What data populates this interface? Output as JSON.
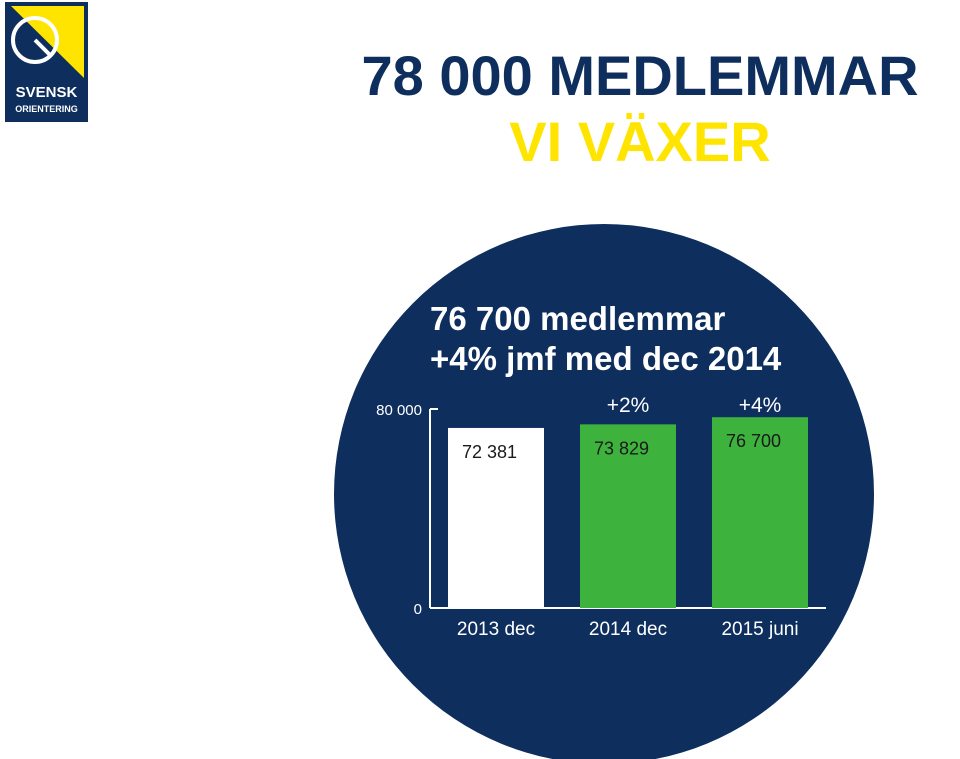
{
  "logo": {
    "line1": "SVENSK",
    "line2": "ORIENTERING",
    "colors": {
      "blue": "#0e2f5e",
      "yellow": "#ffe400"
    }
  },
  "headline": {
    "line1": "78 000 MEDLEMMAR",
    "line2": "VI VÄXER"
  },
  "colors": {
    "navy": "#0e2f5e",
    "yellow": "#ffe400",
    "green": "#3db33d",
    "white": "#ffffff",
    "label_dark": "#1a1a1a"
  },
  "chart_data": {
    "type": "bar",
    "title": "76 700 medlemmar",
    "subtitle": "+4% jmf med dec 2014",
    "categories": [
      "2013 dec",
      "2014 dec",
      "2015 juni"
    ],
    "values": [
      72381,
      73829,
      76700
    ],
    "value_labels": [
      "72 381",
      "73 829",
      "76 700"
    ],
    "change_labels": [
      "",
      "+2%",
      "+4%"
    ],
    "bar_colors": [
      "#ffffff",
      "#3db33d",
      "#3db33d"
    ],
    "ylim": [
      0,
      80000
    ],
    "yticks": [
      0,
      80000
    ],
    "ytick_labels": [
      "0",
      "80 000"
    ],
    "xlabel": "",
    "ylabel": "",
    "grid": false,
    "legend": "none"
  }
}
